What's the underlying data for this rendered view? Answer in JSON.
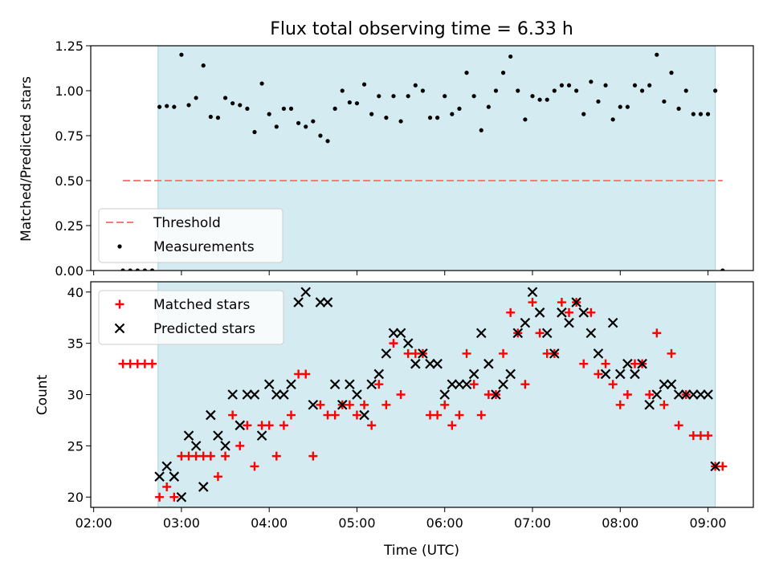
{
  "title": "Flux total observing time = 6.33 h",
  "chart_data": [
    {
      "type": "scatter",
      "ylabel": "Matched/Predicted stars",
      "ylim": [
        0,
        1.25
      ],
      "xlim": [
        "01:58",
        "09:31"
      ],
      "yticks": [
        "0.00",
        "0.25",
        "0.50",
        "0.75",
        "1.00",
        "1.25"
      ],
      "observing_window": [
        "02:44",
        "09:05"
      ],
      "legend_position": "lower-left",
      "threshold": {
        "name": "Threshold",
        "value": 0.5,
        "x": [
          "02:20",
          "09:10"
        ],
        "color": "#f87a7a"
      },
      "measurements": {
        "name": "Measurements",
        "color": "#000000",
        "points": [
          [
            "02:20",
            0.0
          ],
          [
            "02:25",
            0.0
          ],
          [
            "02:30",
            0.0
          ],
          [
            "02:35",
            0.0
          ],
          [
            "02:40",
            0.0
          ],
          [
            "02:45",
            0.91
          ],
          [
            "02:50",
            0.915
          ],
          [
            "02:55",
            0.91
          ],
          [
            "03:00",
            1.2
          ],
          [
            "03:05",
            0.92
          ],
          [
            "03:10",
            0.96
          ],
          [
            "03:15",
            1.14
          ],
          [
            "03:20",
            0.855
          ],
          [
            "03:25",
            0.85
          ],
          [
            "03:30",
            0.96
          ],
          [
            "03:35",
            0.93
          ],
          [
            "03:40",
            0.92
          ],
          [
            "03:45",
            0.9
          ],
          [
            "03:50",
            0.77
          ],
          [
            "03:55",
            1.04
          ],
          [
            "04:00",
            0.87
          ],
          [
            "04:05",
            0.8
          ],
          [
            "04:10",
            0.9
          ],
          [
            "04:15",
            0.9
          ],
          [
            "04:20",
            0.82
          ],
          [
            "04:25",
            0.8
          ],
          [
            "04:30",
            0.83
          ],
          [
            "04:35",
            0.75
          ],
          [
            "04:40",
            0.72
          ],
          [
            "04:45",
            0.9
          ],
          [
            "04:50",
            1.0
          ],
          [
            "04:55",
            0.935
          ],
          [
            "05:00",
            0.93
          ],
          [
            "05:05",
            1.035
          ],
          [
            "05:10",
            0.87
          ],
          [
            "05:15",
            0.97
          ],
          [
            "05:20",
            0.85
          ],
          [
            "05:25",
            0.97
          ],
          [
            "05:30",
            0.83
          ],
          [
            "05:35",
            0.97
          ],
          [
            "05:40",
            1.03
          ],
          [
            "05:45",
            1.0
          ],
          [
            "05:50",
            0.85
          ],
          [
            "05:55",
            0.85
          ],
          [
            "06:00",
            0.97
          ],
          [
            "06:05",
            0.87
          ],
          [
            "06:10",
            0.9
          ],
          [
            "06:15",
            1.1
          ],
          [
            "06:20",
            0.97
          ],
          [
            "06:25",
            0.78
          ],
          [
            "06:30",
            0.91
          ],
          [
            "06:35",
            1.0
          ],
          [
            "06:40",
            1.1
          ],
          [
            "06:45",
            1.19
          ],
          [
            "06:50",
            1.0
          ],
          [
            "06:55",
            0.84
          ],
          [
            "07:00",
            0.97
          ],
          [
            "07:05",
            0.95
          ],
          [
            "07:10",
            0.95
          ],
          [
            "07:15",
            1.0
          ],
          [
            "07:20",
            1.03
          ],
          [
            "07:25",
            1.03
          ],
          [
            "07:30",
            1.0
          ],
          [
            "07:35",
            0.87
          ],
          [
            "07:40",
            1.05
          ],
          [
            "07:45",
            0.94
          ],
          [
            "07:50",
            1.03
          ],
          [
            "07:55",
            0.84
          ],
          [
            "08:00",
            0.91
          ],
          [
            "08:05",
            0.91
          ],
          [
            "08:10",
            1.03
          ],
          [
            "08:15",
            1.0
          ],
          [
            "08:20",
            1.03
          ],
          [
            "08:25",
            1.2
          ],
          [
            "08:30",
            0.94
          ],
          [
            "08:35",
            1.1
          ],
          [
            "08:40",
            0.9
          ],
          [
            "08:45",
            1.0
          ],
          [
            "08:50",
            0.87
          ],
          [
            "08:55",
            0.87
          ],
          [
            "09:00",
            0.87
          ],
          [
            "09:05",
            1.0
          ],
          [
            "09:10",
            0.0
          ]
        ]
      }
    },
    {
      "type": "scatter",
      "xlabel": "Time (UTC)",
      "ylabel": "Count",
      "ylim": [
        19,
        41
      ],
      "xlim": [
        "01:58",
        "09:31"
      ],
      "yticks": [
        "20",
        "25",
        "30",
        "35",
        "40"
      ],
      "xticks": [
        "02:00",
        "03:00",
        "04:00",
        "05:00",
        "06:00",
        "07:00",
        "08:00",
        "09:00"
      ],
      "observing_window": [
        "02:44",
        "09:05"
      ],
      "legend_position": "upper-left",
      "series": [
        {
          "name": "Matched stars",
          "marker": "plus",
          "color": "#ff0000",
          "points": [
            [
              "02:20",
              33
            ],
            [
              "02:25",
              33
            ],
            [
              "02:30",
              33
            ],
            [
              "02:35",
              33
            ],
            [
              "02:40",
              33
            ],
            [
              "02:45",
              20
            ],
            [
              "02:50",
              21
            ],
            [
              "02:55",
              20
            ],
            [
              "03:00",
              24
            ],
            [
              "03:05",
              24
            ],
            [
              "03:10",
              24
            ],
            [
              "03:15",
              24
            ],
            [
              "03:20",
              24
            ],
            [
              "03:25",
              22
            ],
            [
              "03:30",
              24
            ],
            [
              "03:35",
              28
            ],
            [
              "03:40",
              25
            ],
            [
              "03:45",
              27
            ],
            [
              "03:50",
              23
            ],
            [
              "03:55",
              27
            ],
            [
              "04:00",
              27
            ],
            [
              "04:05",
              24
            ],
            [
              "04:10",
              27
            ],
            [
              "04:15",
              28
            ],
            [
              "04:20",
              32
            ],
            [
              "04:25",
              32
            ],
            [
              "04:30",
              24
            ],
            [
              "04:35",
              29
            ],
            [
              "04:40",
              28
            ],
            [
              "04:45",
              28
            ],
            [
              "04:50",
              29
            ],
            [
              "04:55",
              29
            ],
            [
              "05:00",
              28
            ],
            [
              "05:05",
              29
            ],
            [
              "05:10",
              27
            ],
            [
              "05:15",
              31
            ],
            [
              "05:20",
              29
            ],
            [
              "05:25",
              35
            ],
            [
              "05:30",
              30
            ],
            [
              "05:35",
              34
            ],
            [
              "05:40",
              34
            ],
            [
              "05:45",
              34
            ],
            [
              "05:50",
              28
            ],
            [
              "05:55",
              28
            ],
            [
              "06:00",
              29
            ],
            [
              "06:05",
              27
            ],
            [
              "06:10",
              28
            ],
            [
              "06:15",
              34
            ],
            [
              "06:20",
              31
            ],
            [
              "06:25",
              28
            ],
            [
              "06:30",
              30
            ],
            [
              "06:35",
              30
            ],
            [
              "06:40",
              34
            ],
            [
              "06:45",
              38
            ],
            [
              "06:50",
              36
            ],
            [
              "06:55",
              31
            ],
            [
              "07:00",
              39
            ],
            [
              "07:05",
              36
            ],
            [
              "07:10",
              34
            ],
            [
              "07:15",
              34
            ],
            [
              "07:20",
              39
            ],
            [
              "07:25",
              38
            ],
            [
              "07:30",
              39
            ],
            [
              "07:35",
              33
            ],
            [
              "07:40",
              38
            ],
            [
              "07:45",
              32
            ],
            [
              "07:50",
              33
            ],
            [
              "07:55",
              31
            ],
            [
              "08:00",
              29
            ],
            [
              "08:05",
              30
            ],
            [
              "08:10",
              33
            ],
            [
              "08:15",
              33
            ],
            [
              "08:20",
              30
            ],
            [
              "08:25",
              36
            ],
            [
              "08:30",
              29
            ],
            [
              "08:35",
              34
            ],
            [
              "08:40",
              27
            ],
            [
              "08:45",
              30
            ],
            [
              "08:50",
              26
            ],
            [
              "08:55",
              26
            ],
            [
              "09:00",
              26
            ],
            [
              "09:05",
              23
            ],
            [
              "09:10",
              23
            ]
          ]
        },
        {
          "name": "Predicted stars",
          "marker": "x",
          "color": "#000000",
          "points": [
            [
              "02:45",
              22
            ],
            [
              "02:50",
              23
            ],
            [
              "02:55",
              22
            ],
            [
              "03:00",
              20
            ],
            [
              "03:05",
              26
            ],
            [
              "03:10",
              25
            ],
            [
              "03:15",
              21
            ],
            [
              "03:20",
              28
            ],
            [
              "03:25",
              26
            ],
            [
              "03:30",
              25
            ],
            [
              "03:35",
              30
            ],
            [
              "03:40",
              27
            ],
            [
              "03:45",
              30
            ],
            [
              "03:50",
              30
            ],
            [
              "03:55",
              26
            ],
            [
              "04:00",
              31
            ],
            [
              "04:05",
              30
            ],
            [
              "04:10",
              30
            ],
            [
              "04:15",
              31
            ],
            [
              "04:20",
              39
            ],
            [
              "04:25",
              40
            ],
            [
              "04:30",
              29
            ],
            [
              "04:35",
              39
            ],
            [
              "04:40",
              39
            ],
            [
              "04:45",
              31
            ],
            [
              "04:50",
              29
            ],
            [
              "04:55",
              31
            ],
            [
              "05:00",
              30
            ],
            [
              "05:05",
              28
            ],
            [
              "05:10",
              31
            ],
            [
              "05:15",
              32
            ],
            [
              "05:20",
              34
            ],
            [
              "05:25",
              36
            ],
            [
              "05:30",
              36
            ],
            [
              "05:35",
              35
            ],
            [
              "05:40",
              33
            ],
            [
              "05:45",
              34
            ],
            [
              "05:50",
              33
            ],
            [
              "05:55",
              33
            ],
            [
              "06:00",
              30
            ],
            [
              "06:05",
              31
            ],
            [
              "06:10",
              31
            ],
            [
              "06:15",
              31
            ],
            [
              "06:20",
              32
            ],
            [
              "06:25",
              36
            ],
            [
              "06:30",
              33
            ],
            [
              "06:35",
              30
            ],
            [
              "06:40",
              31
            ],
            [
              "06:45",
              32
            ],
            [
              "06:50",
              36
            ],
            [
              "06:55",
              37
            ],
            [
              "07:00",
              40
            ],
            [
              "07:05",
              38
            ],
            [
              "07:10",
              36
            ],
            [
              "07:15",
              34
            ],
            [
              "07:20",
              38
            ],
            [
              "07:25",
              37
            ],
            [
              "07:30",
              39
            ],
            [
              "07:35",
              38
            ],
            [
              "07:40",
              36
            ],
            [
              "07:45",
              34
            ],
            [
              "07:50",
              32
            ],
            [
              "07:55",
              37
            ],
            [
              "08:00",
              32
            ],
            [
              "08:05",
              33
            ],
            [
              "08:10",
              32
            ],
            [
              "08:15",
              33
            ],
            [
              "08:20",
              29
            ],
            [
              "08:25",
              30
            ],
            [
              "08:30",
              31
            ],
            [
              "08:35",
              31
            ],
            [
              "08:40",
              30
            ],
            [
              "08:45",
              30
            ],
            [
              "08:50",
              30
            ],
            [
              "08:55",
              30
            ],
            [
              "09:00",
              30
            ],
            [
              "09:05",
              23
            ]
          ]
        }
      ]
    }
  ],
  "colors": {
    "observing_window_fill": "#d4ebf1",
    "observing_window_edge": "#a9d3df"
  }
}
